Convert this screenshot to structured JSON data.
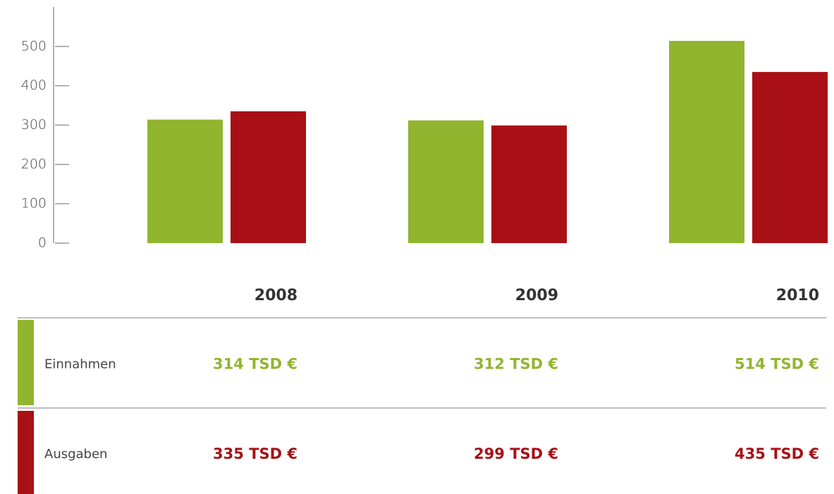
{
  "chart_data": {
    "type": "bar",
    "categories": [
      "2008",
      "2009",
      "2010"
    ],
    "series": [
      {
        "name": "Einnahmen",
        "color": "#92b530",
        "values": [
          314,
          312,
          514
        ],
        "value_labels": [
          "314 TSD €",
          "312 TSD €",
          "514 TSD €"
        ]
      },
      {
        "name": "Ausgaben",
        "color": "#a81015",
        "values": [
          335,
          299,
          435
        ],
        "value_labels": [
          "335 TSD €",
          "299 TSD €",
          "435 TSD €"
        ]
      }
    ],
    "ylim": [
      0,
      600
    ],
    "yticks": [
      0,
      100,
      200,
      300,
      400,
      500
    ],
    "grid": false
  }
}
